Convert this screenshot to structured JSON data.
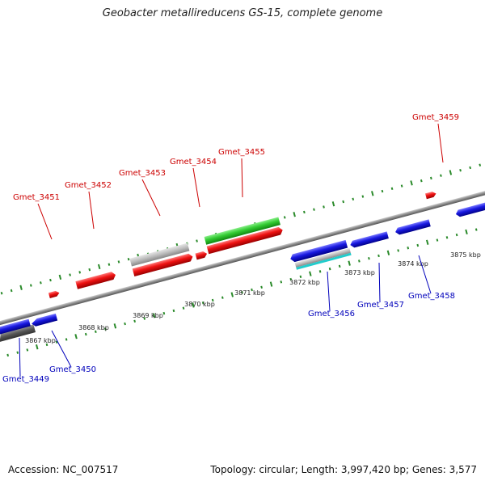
{
  "title": "Geobacter metallireducens GS-15, complete genome",
  "footer": {
    "accession": "Accession: NC_007517",
    "stats": "Topology: circular; Length: 3,997,420 bp; Genes: 3,577"
  },
  "colors": {
    "forward_gene": "#ee1111",
    "reverse_gene": "#1818e0",
    "label_forward": "#cc0000",
    "label_reverse": "#0000bb",
    "backbone": "#8a8a8a",
    "ticks": "#2a8a2a",
    "green_gene": "#33cc33",
    "gray_gene": "#bbbbbb",
    "cyan_gene": "#22cccc",
    "dark_gene": "#555555"
  },
  "scale": {
    "unit": "kbp",
    "labels": [
      "3867 kbp",
      "3868 kbp",
      "3869 kbp",
      "3870 kbp",
      "3871 kbp",
      "3872 kbp",
      "3873 kbp",
      "3874 kbp",
      "3875 kbp"
    ],
    "positions_kbp": [
      3867,
      3868,
      3869,
      3870,
      3871,
      3872,
      3873,
      3874,
      3875
    ]
  },
  "genes_forward": [
    {
      "label": "Gmet_3451"
    },
    {
      "label": "Gmet_3452"
    },
    {
      "label": "Gmet_3453"
    },
    {
      "label": "Gmet_3454"
    },
    {
      "label": "Gmet_3455"
    },
    {
      "label": "Gmet_3459"
    }
  ],
  "genes_reverse": [
    {
      "label": "Gmet_3449"
    },
    {
      "label": "Gmet_3450"
    },
    {
      "label": "Gmet_3456"
    },
    {
      "label": "Gmet_3457"
    },
    {
      "label": "Gmet_3458"
    }
  ]
}
